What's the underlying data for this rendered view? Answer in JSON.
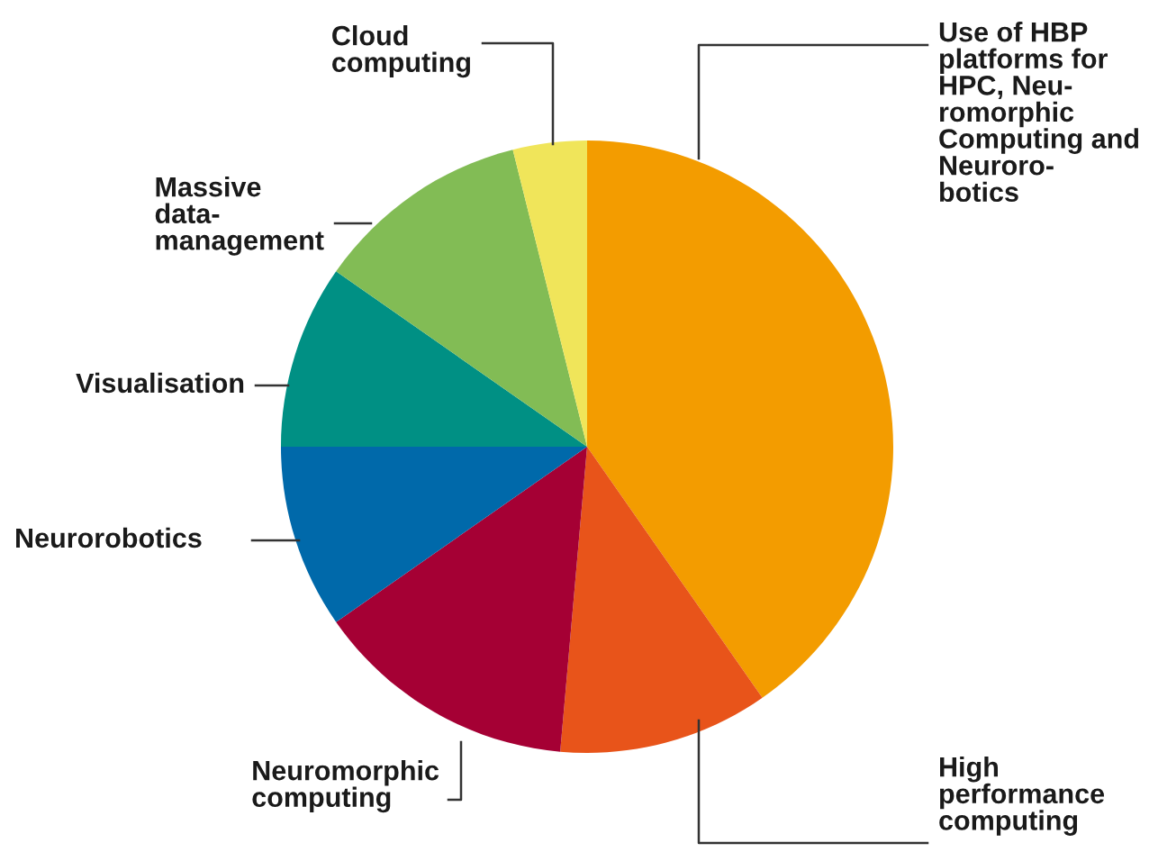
{
  "chart_data": {
    "type": "pie",
    "categories": [
      "Use of HBP platforms for HPC, Neu-romorphic Computing and Neuroro-botics",
      "High performance computing",
      "Neuromorphic computing",
      "Neurorobotics",
      "Visualisation",
      "Massive data-management",
      "Cloud computing"
    ],
    "values": [
      40.3,
      11.1,
      13.9,
      9.7,
      9.7,
      11.4,
      3.9
    ],
    "colors": [
      "#f39c00",
      "#e8541a",
      "#a50034",
      "#0069aa",
      "#009084",
      "#82bc55",
      "#f0e55a"
    ]
  }
}
